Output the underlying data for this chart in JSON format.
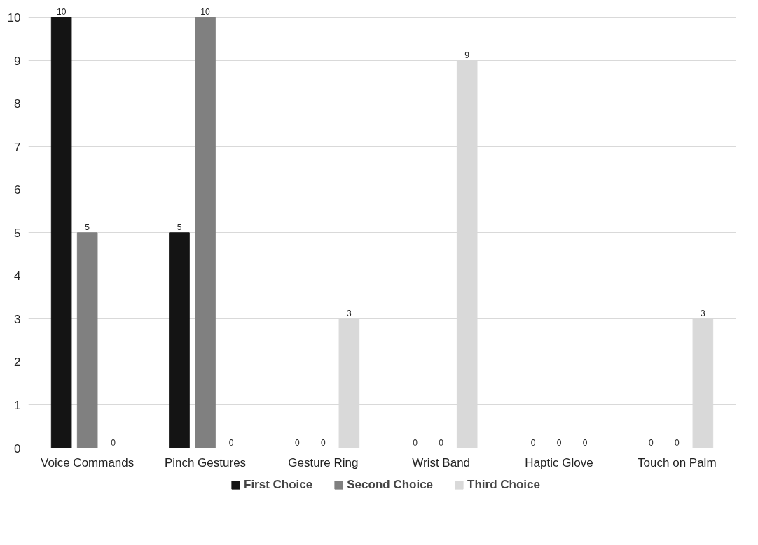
{
  "chart_data": {
    "type": "bar",
    "categories": [
      "Voice Commands",
      "Pinch Gestures",
      "Gesture Ring",
      "Wrist Band",
      "Haptic Glove",
      "Touch on Palm"
    ],
    "series": [
      {
        "name": "First Choice",
        "color": "#141414",
        "values": [
          10,
          5,
          0,
          0,
          0,
          0
        ]
      },
      {
        "name": "Second Choice",
        "color": "#808080",
        "values": [
          5,
          10,
          0,
          0,
          0,
          0
        ]
      },
      {
        "name": "Third Choice",
        "color": "#d9d9d9",
        "values": [
          0,
          0,
          3,
          9,
          0,
          3
        ]
      }
    ],
    "ylim": [
      0,
      10
    ],
    "yticks": [
      0,
      1,
      2,
      3,
      4,
      5,
      6,
      7,
      8,
      9,
      10
    ],
    "grid": "y",
    "legend": "bottom",
    "data_labels": true
  }
}
